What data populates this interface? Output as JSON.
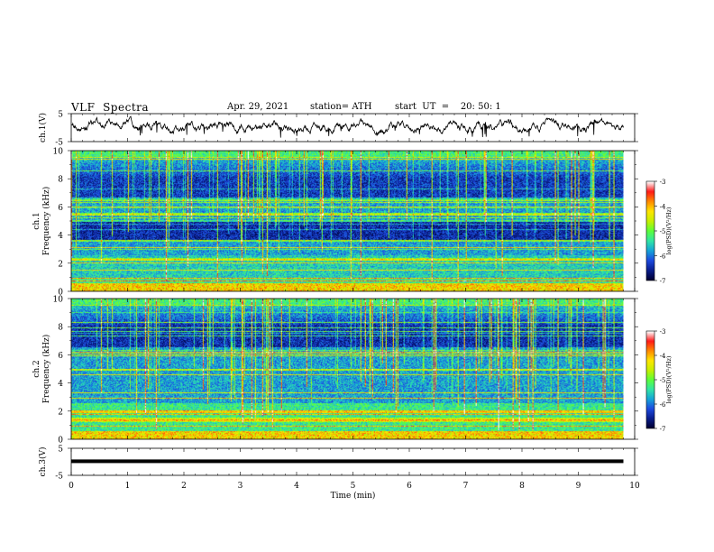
{
  "header": {
    "title": "VLF  Spectra",
    "date": "Apr. 29, 2021",
    "station": "station= ATH",
    "start_ut": "start  UT  =    20: 50: 1"
  },
  "colors": {
    "colormap": [
      "#000033",
      "#0a1f8f",
      "#1e4be0",
      "#16a6d8",
      "#32e6a6",
      "#5cff3a",
      "#c8f000",
      "#ffe600",
      "#ff8a00",
      "#ff1a1a",
      "#ffffff"
    ]
  },
  "chart_data": [
    {
      "type": "line",
      "id": "ch1-waveform",
      "ylabel": "ch.1(V)",
      "ylim": [
        -5,
        5
      ],
      "yticks": [
        5,
        -5
      ],
      "xlim": [
        0,
        10
      ],
      "baseline": 0.6,
      "visible_until_min": 9.8
    },
    {
      "type": "heatmap",
      "id": "ch1-spectrogram",
      "ylabel": "ch.1\nFrequency  (kHz)",
      "ylim": [
        0,
        10
      ],
      "yticks": [
        0,
        2,
        4,
        6,
        8,
        10
      ],
      "xlim": [
        0,
        10
      ],
      "visible_until_min": 9.8,
      "colorbar": {
        "label": "log(PSD)(V²/Hz)",
        "range": [
          -7,
          -3
        ],
        "ticks": [
          -3,
          -4,
          -5,
          -6,
          -7
        ]
      }
    },
    {
      "type": "heatmap",
      "id": "ch2-spectrogram",
      "ylabel": "ch.2\nFrequency  (kHz)",
      "ylim": [
        0,
        10
      ],
      "yticks": [
        0,
        2,
        4,
        6,
        8,
        10
      ],
      "xlim": [
        0,
        10
      ],
      "visible_until_min": 9.8,
      "colorbar": {
        "label": "log(PSD)(V²/Hz)",
        "range": [
          -7,
          -3
        ],
        "ticks": [
          -3,
          -4,
          -5,
          -6,
          -7
        ]
      }
    },
    {
      "type": "line",
      "id": "ch3-waveform",
      "ylabel": "ch.3(V)",
      "ylim": [
        -5,
        5
      ],
      "yticks": [
        5,
        -5
      ],
      "xlim": [
        0,
        10
      ],
      "baseline": 0.2,
      "visible_until_min": 9.8,
      "xlabel": "Time  (min)",
      "xticks": [
        0,
        1,
        2,
        3,
        4,
        5,
        6,
        7,
        8,
        9,
        10
      ]
    }
  ]
}
